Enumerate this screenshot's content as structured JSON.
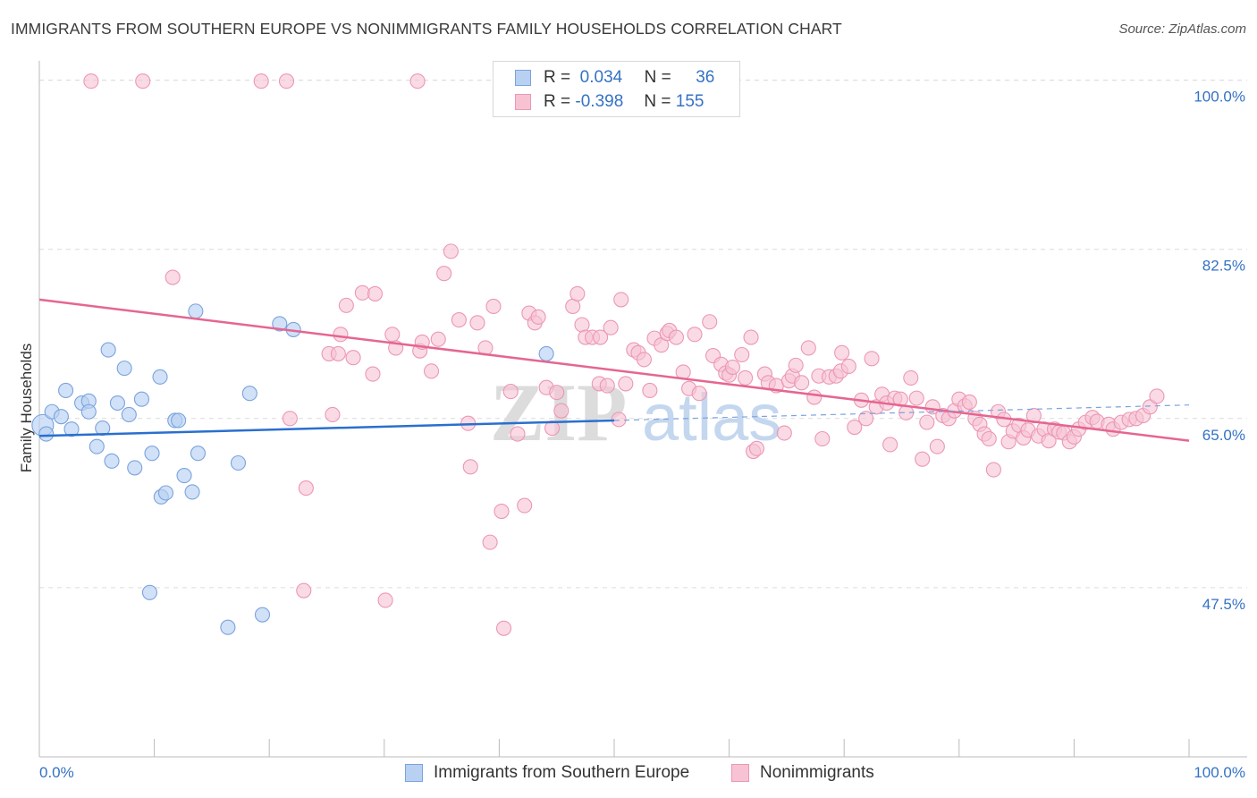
{
  "header": {
    "title": "IMMIGRANTS FROM SOUTHERN EUROPE VS NONIMMIGRANTS FAMILY HOUSEHOLDS CORRELATION CHART",
    "source": "Source: ZipAtlas.com"
  },
  "legend": {
    "rows": [
      {
        "r_label": "R =",
        "r_value": "0.034",
        "n_label": "N =",
        "n_value": "36"
      },
      {
        "r_label": "R =",
        "r_value": "-0.398",
        "n_label": "N =",
        "n_value": "155"
      }
    ]
  },
  "bottom_legend": {
    "series1": "Immigrants from Southern Europe",
    "series2": "Nonimmigrants"
  },
  "watermark": {
    "zip": "ZIP",
    "atlas": "atlas"
  },
  "colors": {
    "blue_fill": "#b8d1f3",
    "blue_stroke": "#7aa3dd",
    "blue_line": "#2a6fcf",
    "pink_fill": "#f7c3d3",
    "pink_stroke": "#ec97b3",
    "pink_line": "#e56690",
    "tick_label": "#3472c4",
    "grid": "#dcdcdc"
  },
  "chart_data": {
    "type": "scatter",
    "title": "IMMIGRANTS FROM SOUTHERN EUROPE VS NONIMMIGRANTS FAMILY HOUSEHOLDS CORRELATION CHART",
    "xlabel": "",
    "ylabel": "Family Households",
    "xlim": [
      0,
      100
    ],
    "ylim": [
      30,
      102
    ],
    "x_tick_labels": [
      "0.0%",
      "100.0%"
    ],
    "y_ticks": [
      47.5,
      65.0,
      82.5,
      100.0
    ],
    "y_tick_labels": [
      "47.5%",
      "65.0%",
      "82.5%",
      "100.0%"
    ],
    "grid": true,
    "legend_position": "top-center",
    "series": [
      {
        "name": "Immigrants from Southern Europe",
        "color": "#7aa3dd",
        "r": 0.034,
        "n": 36,
        "trend": {
          "x": [
            0,
            50
          ],
          "y": [
            63.2,
            64.8
          ],
          "dashed_to": [
            100,
            66.4
          ]
        },
        "points": [
          [
            0.3,
            64.3
          ],
          [
            0.6,
            63.4
          ],
          [
            1.1,
            65.7
          ],
          [
            1.9,
            65.2
          ],
          [
            2.3,
            67.9
          ],
          [
            2.8,
            63.9
          ],
          [
            3.7,
            66.6
          ],
          [
            4.3,
            66.8
          ],
          [
            4.3,
            65.7
          ],
          [
            5.0,
            62.1
          ],
          [
            5.5,
            64.0
          ],
          [
            6.0,
            72.1
          ],
          [
            6.3,
            60.6
          ],
          [
            6.8,
            66.6
          ],
          [
            7.4,
            70.2
          ],
          [
            7.8,
            65.4
          ],
          [
            8.3,
            59.9
          ],
          [
            8.9,
            67.0
          ],
          [
            9.6,
            47.0
          ],
          [
            9.8,
            61.4
          ],
          [
            10.6,
            56.9
          ],
          [
            10.5,
            69.3
          ],
          [
            11.0,
            57.3
          ],
          [
            11.8,
            64.8
          ],
          [
            12.1,
            64.8
          ],
          [
            12.6,
            59.1
          ],
          [
            13.3,
            57.4
          ],
          [
            13.8,
            61.4
          ],
          [
            13.6,
            76.1
          ],
          [
            17.3,
            60.4
          ],
          [
            18.3,
            67.6
          ],
          [
            16.4,
            43.4
          ],
          [
            19.4,
            44.7
          ],
          [
            20.9,
            74.8
          ],
          [
            22.1,
            74.2
          ],
          [
            44.1,
            71.7
          ]
        ]
      },
      {
        "name": "Nonimmigrants",
        "color": "#ec97b3",
        "r": -0.398,
        "n": 155,
        "trend": {
          "x": [
            0,
            100
          ],
          "y": [
            77.3,
            62.7
          ]
        },
        "points": [
          [
            4.5,
            99.9
          ],
          [
            9.0,
            99.9
          ],
          [
            19.3,
            99.9
          ],
          [
            21.5,
            99.9
          ],
          [
            32.9,
            99.9
          ],
          [
            11.6,
            79.6
          ],
          [
            21.8,
            65.0
          ],
          [
            23.2,
            57.8
          ],
          [
            23.0,
            47.2
          ],
          [
            25.5,
            65.4
          ],
          [
            25.2,
            71.7
          ],
          [
            26.0,
            71.7
          ],
          [
            26.2,
            73.7
          ],
          [
            26.7,
            76.7
          ],
          [
            27.3,
            71.3
          ],
          [
            28.1,
            78.0
          ],
          [
            29.0,
            69.6
          ],
          [
            29.2,
            77.9
          ],
          [
            30.1,
            46.2
          ],
          [
            30.7,
            73.7
          ],
          [
            31.0,
            72.3
          ],
          [
            33.1,
            72.0
          ],
          [
            33.3,
            72.9
          ],
          [
            34.1,
            69.9
          ],
          [
            34.7,
            73.2
          ],
          [
            35.2,
            80.0
          ],
          [
            35.8,
            82.3
          ],
          [
            36.5,
            75.2
          ],
          [
            37.3,
            64.5
          ],
          [
            37.5,
            60.0
          ],
          [
            38.1,
            74.9
          ],
          [
            38.8,
            72.3
          ],
          [
            39.2,
            52.2
          ],
          [
            39.5,
            76.6
          ],
          [
            40.4,
            43.3
          ],
          [
            40.2,
            55.4
          ],
          [
            41.0,
            67.8
          ],
          [
            41.6,
            63.4
          ],
          [
            42.2,
            56.0
          ],
          [
            42.6,
            75.9
          ],
          [
            43.1,
            74.9
          ],
          [
            43.4,
            75.5
          ],
          [
            44.1,
            68.2
          ],
          [
            44.6,
            64.0
          ],
          [
            45.0,
            67.7
          ],
          [
            45.4,
            65.8
          ],
          [
            46.4,
            76.6
          ],
          [
            46.8,
            77.9
          ],
          [
            47.2,
            74.7
          ],
          [
            47.5,
            73.4
          ],
          [
            48.1,
            73.4
          ],
          [
            48.7,
            68.6
          ],
          [
            48.8,
            73.4
          ],
          [
            49.4,
            68.4
          ],
          [
            49.7,
            74.4
          ],
          [
            50.4,
            64.9
          ],
          [
            50.6,
            77.3
          ],
          [
            51.0,
            68.6
          ],
          [
            51.7,
            72.1
          ],
          [
            52.1,
            71.8
          ],
          [
            52.6,
            71.1
          ],
          [
            53.1,
            67.9
          ],
          [
            53.5,
            73.3
          ],
          [
            54.1,
            72.6
          ],
          [
            54.6,
            73.8
          ],
          [
            54.8,
            74.1
          ],
          [
            55.4,
            73.4
          ],
          [
            56.0,
            69.8
          ],
          [
            56.5,
            68.1
          ],
          [
            57.0,
            73.7
          ],
          [
            57.4,
            67.6
          ],
          [
            58.3,
            75.0
          ],
          [
            58.6,
            71.5
          ],
          [
            59.3,
            70.6
          ],
          [
            59.7,
            69.7
          ],
          [
            60.0,
            69.5
          ],
          [
            60.3,
            70.3
          ],
          [
            61.1,
            71.6
          ],
          [
            61.4,
            69.2
          ],
          [
            61.9,
            73.4
          ],
          [
            62.1,
            61.6
          ],
          [
            62.4,
            61.9
          ],
          [
            63.1,
            69.6
          ],
          [
            63.4,
            68.7
          ],
          [
            64.1,
            68.4
          ],
          [
            64.8,
            63.5
          ],
          [
            65.2,
            68.9
          ],
          [
            65.5,
            69.4
          ],
          [
            65.8,
            70.5
          ],
          [
            66.3,
            68.7
          ],
          [
            66.9,
            72.3
          ],
          [
            67.4,
            67.2
          ],
          [
            67.8,
            69.4
          ],
          [
            68.1,
            62.9
          ],
          [
            68.7,
            69.3
          ],
          [
            69.3,
            69.4
          ],
          [
            69.8,
            71.8
          ],
          [
            69.7,
            69.9
          ],
          [
            70.4,
            70.4
          ],
          [
            70.9,
            64.1
          ],
          [
            71.5,
            66.9
          ],
          [
            71.9,
            65.0
          ],
          [
            72.4,
            71.2
          ],
          [
            72.8,
            66.2
          ],
          [
            73.3,
            67.5
          ],
          [
            73.7,
            66.6
          ],
          [
            74.0,
            62.3
          ],
          [
            74.4,
            67.1
          ],
          [
            74.9,
            67.0
          ],
          [
            75.4,
            65.6
          ],
          [
            75.8,
            69.2
          ],
          [
            76.3,
            67.1
          ],
          [
            76.8,
            60.8
          ],
          [
            77.2,
            64.6
          ],
          [
            77.7,
            66.2
          ],
          [
            78.1,
            62.1
          ],
          [
            78.6,
            65.3
          ],
          [
            79.1,
            65.0
          ],
          [
            79.6,
            65.8
          ],
          [
            80.0,
            67.0
          ],
          [
            80.5,
            66.3
          ],
          [
            80.9,
            66.7
          ],
          [
            81.4,
            65.0
          ],
          [
            81.8,
            64.4
          ],
          [
            82.2,
            63.4
          ],
          [
            82.6,
            62.9
          ],
          [
            83.0,
            59.7
          ],
          [
            83.4,
            65.7
          ],
          [
            83.9,
            64.9
          ],
          [
            84.3,
            62.6
          ],
          [
            84.7,
            63.7
          ],
          [
            85.2,
            64.3
          ],
          [
            85.6,
            63.0
          ],
          [
            86.0,
            63.8
          ],
          [
            86.5,
            65.3
          ],
          [
            86.9,
            63.2
          ],
          [
            87.4,
            63.9
          ],
          [
            87.8,
            62.7
          ],
          [
            88.3,
            63.9
          ],
          [
            88.7,
            63.6
          ],
          [
            89.1,
            63.5
          ],
          [
            89.6,
            62.6
          ],
          [
            90.0,
            63.1
          ],
          [
            90.4,
            63.9
          ],
          [
            91.0,
            64.6
          ],
          [
            91.6,
            65.1
          ],
          [
            92.0,
            64.7
          ],
          [
            93.0,
            64.4
          ],
          [
            93.4,
            63.9
          ],
          [
            94.1,
            64.6
          ],
          [
            94.8,
            64.9
          ],
          [
            95.4,
            65.0
          ],
          [
            96.0,
            65.3
          ],
          [
            96.6,
            66.2
          ],
          [
            97.2,
            67.3
          ]
        ]
      }
    ]
  }
}
